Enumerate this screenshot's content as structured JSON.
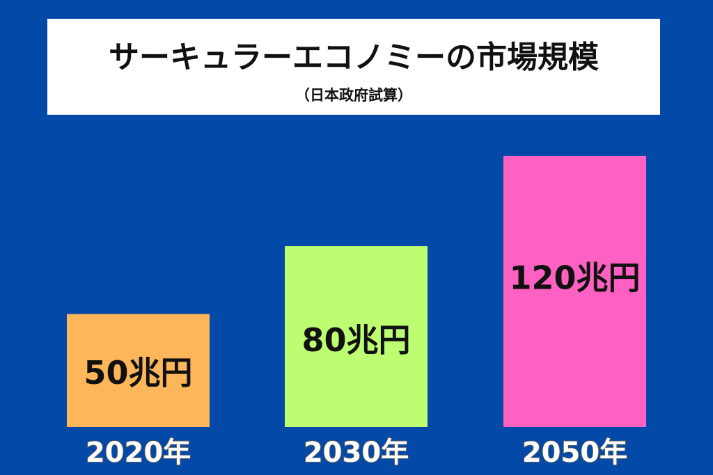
{
  "chart_data": {
    "type": "bar",
    "title": "サーキュラーエコノミーの市場規模",
    "subtitle": "（日本政府試算）",
    "categories": [
      "2020年",
      "2030年",
      "2050年"
    ],
    "values": [
      50,
      80,
      120
    ],
    "value_labels": [
      "50兆円",
      "80兆円",
      "120兆円"
    ],
    "unit": "兆円",
    "ylim": [
      0,
      125
    ],
    "grid": false,
    "legend": "none"
  },
  "colors": {
    "background": "#0249a8",
    "bars": [
      "#fdb65a",
      "#bdfd72",
      "#ff61c2"
    ]
  }
}
